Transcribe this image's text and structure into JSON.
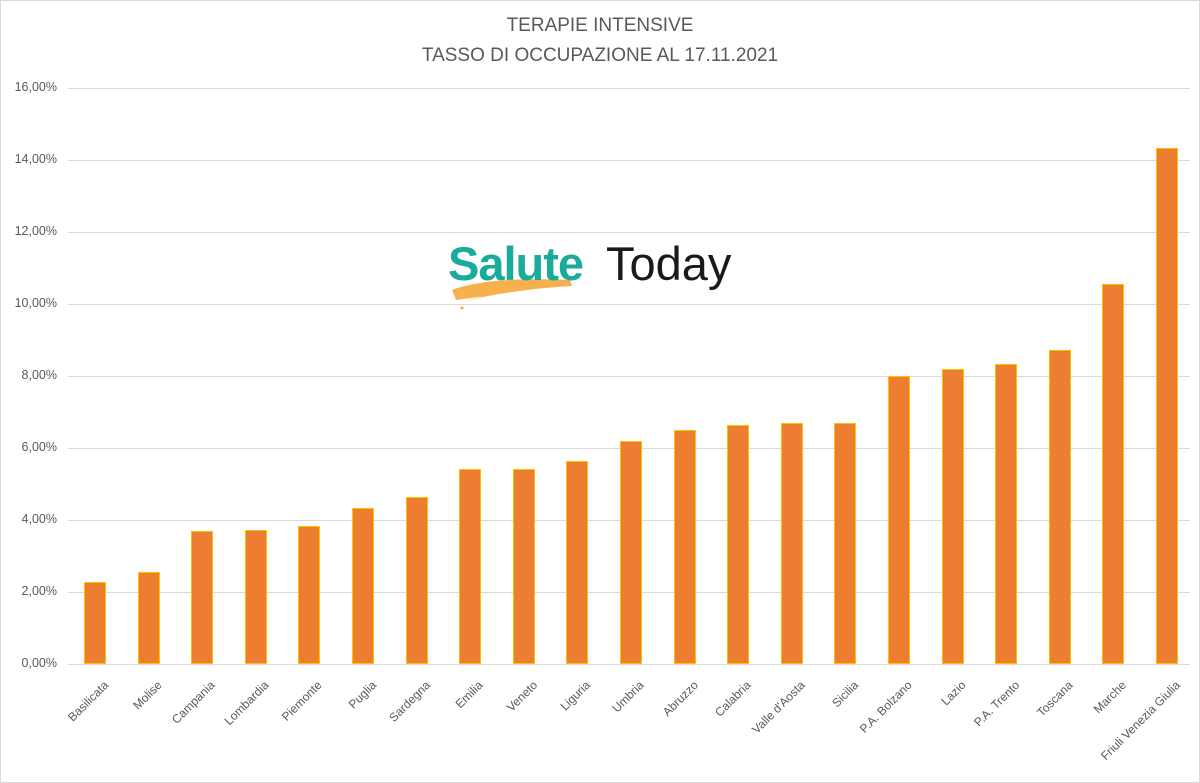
{
  "chart_data": {
    "type": "bar",
    "title": "TERAPIE INTENSIVE",
    "subtitle": "TASSO DI OCCUPAZIONE AL 17.11.2021",
    "xlabel": "",
    "ylabel": "",
    "ylim": [
      0,
      16
    ],
    "yticks": [
      "0,00%",
      "2,00%",
      "4,00%",
      "6,00%",
      "8,00%",
      "10,00%",
      "12,00%",
      "14,00%",
      "16,00%"
    ],
    "grid": true,
    "legend": null,
    "categories": [
      "Basilicata",
      "Molise",
      "Campania",
      "Lombardia",
      "Piemonte",
      "Puglia",
      "Sardegna",
      "Emilia",
      "Veneto",
      "Liguria",
      "Umbria",
      "Abruzzo",
      "Calabria",
      "Valle d'Aosta",
      "Sicilia",
      "P.A. Bolzano",
      "Lazio",
      "P.A. Trento",
      "Toscana",
      "Marche",
      "Friuli Venezia Giulia"
    ],
    "values": [
      2.28,
      2.56,
      3.69,
      3.72,
      3.83,
      4.33,
      4.64,
      5.42,
      5.42,
      5.64,
      6.19,
      6.5,
      6.64,
      6.69,
      6.69,
      8.0,
      8.19,
      8.33,
      8.72,
      10.56,
      14.33
    ],
    "unit": "%",
    "colors": {
      "bar_fill": "#ed7d31",
      "bar_border": "#ffc000",
      "grid": "#d9d9d9",
      "text": "#595959"
    }
  },
  "watermark": {
    "part1": "Salute",
    "part2": "Today",
    "color1": "#1aab9b",
    "color2": "#1a1a1a",
    "swoosh_color": "#f5a93a"
  }
}
